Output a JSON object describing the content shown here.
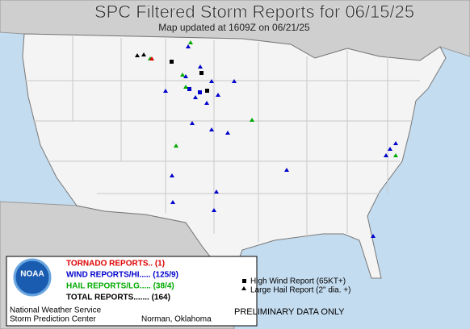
{
  "header": {
    "title": "SPC Filtered Storm Reports for 06/15/25",
    "subtitle": "Map updated at 1609Z on 06/21/25"
  },
  "legend": {
    "tornado": "TORNADO REPORTS.. (1)",
    "wind": "WIND REPORTS/HI..... (125/9)",
    "hail": "HAIL REPORTS/LG..... (38/4)",
    "total": "TOTAL REPORTS....... (164)"
  },
  "logo": {
    "text": "NOAA"
  },
  "footer": {
    "agency": "National Weather Service",
    "center": "Storm Prediction Center",
    "location": "Norman, Oklahoma"
  },
  "key": {
    "high_wind": "High Wind Report (65KT+)",
    "large_hail": "Large Hail Report (2\" dia. +)"
  },
  "notice": "PRELIMINARY DATA ONLY"
}
